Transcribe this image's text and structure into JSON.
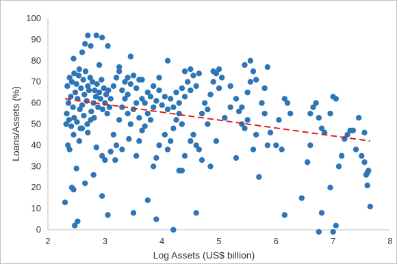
{
  "chart_data": {
    "type": "scatter",
    "title": "",
    "xlabel": "Log Assets (US$ billion)",
    "ylabel": "Loans/Assets (%)",
    "xlim": [
      2,
      8
    ],
    "ylim": [
      0,
      100
    ],
    "x_ticks": [
      2,
      3,
      4,
      5,
      6,
      7,
      8
    ],
    "y_ticks": [
      0,
      10,
      20,
      30,
      40,
      50,
      60,
      70,
      80,
      90,
      100
    ],
    "grid": false,
    "series": [
      {
        "marker_color": "#2e75b6",
        "points": [
          [
            2.3,
            13
          ],
          [
            2.42,
            20
          ],
          [
            2.45,
            19
          ],
          [
            2.47,
            2
          ],
          [
            2.52,
            4
          ],
          [
            2.5,
            29
          ],
          [
            2.65,
            22
          ],
          [
            2.8,
            26
          ],
          [
            2.95,
            16
          ],
          [
            3.05,
            7
          ],
          [
            2.35,
            40
          ],
          [
            2.38,
            38
          ],
          [
            2.45,
            45
          ],
          [
            2.55,
            42
          ],
          [
            2.6,
            48
          ],
          [
            2.7,
            46
          ],
          [
            2.85,
            39
          ],
          [
            2.95,
            35
          ],
          [
            3.0,
            33
          ],
          [
            3.1,
            37
          ],
          [
            2.33,
            55
          ],
          [
            2.36,
            60
          ],
          [
            2.4,
            63
          ],
          [
            2.44,
            58
          ],
          [
            2.48,
            65
          ],
          [
            2.52,
            62
          ],
          [
            2.56,
            57
          ],
          [
            2.6,
            59
          ],
          [
            2.64,
            64
          ],
          [
            2.68,
            61
          ],
          [
            2.72,
            66
          ],
          [
            2.76,
            56
          ],
          [
            2.8,
            60
          ],
          [
            2.84,
            63
          ],
          [
            2.88,
            58
          ],
          [
            2.92,
            62
          ],
          [
            2.96,
            57
          ],
          [
            3.0,
            60
          ],
          [
            3.04,
            55
          ],
          [
            3.08,
            58
          ],
          [
            2.34,
            68
          ],
          [
            2.38,
            72
          ],
          [
            2.42,
            70
          ],
          [
            2.46,
            74
          ],
          [
            2.5,
            69
          ],
          [
            2.54,
            73
          ],
          [
            2.58,
            67
          ],
          [
            2.62,
            71
          ],
          [
            2.66,
            75
          ],
          [
            2.7,
            68
          ],
          [
            2.74,
            72
          ],
          [
            2.78,
            70
          ],
          [
            2.82,
            66
          ],
          [
            2.86,
            69
          ],
          [
            2.9,
            65
          ],
          [
            2.94,
            71
          ],
          [
            2.98,
            67
          ],
          [
            3.02,
            64
          ],
          [
            3.06,
            66
          ],
          [
            3.1,
            62
          ],
          [
            2.32,
            50
          ],
          [
            2.37,
            52
          ],
          [
            2.41,
            49
          ],
          [
            2.46,
            53
          ],
          [
            2.51,
            51
          ],
          [
            2.57,
            48
          ],
          [
            2.63,
            54
          ],
          [
            2.69,
            50
          ],
          [
            2.75,
            52
          ],
          [
            2.81,
            53
          ],
          [
            2.45,
            81
          ],
          [
            2.6,
            84
          ],
          [
            2.65,
            88
          ],
          [
            2.7,
            92
          ],
          [
            2.75,
            87
          ],
          [
            2.85,
            92
          ],
          [
            2.95,
            91
          ],
          [
            3.05,
            87
          ],
          [
            2.55,
            76
          ],
          [
            2.9,
            78
          ],
          [
            3.15,
            45
          ],
          [
            3.2,
            40
          ],
          [
            3.25,
            52
          ],
          [
            3.3,
            58
          ],
          [
            3.35,
            62
          ],
          [
            3.4,
            55
          ],
          [
            3.45,
            50
          ],
          [
            3.5,
            57
          ],
          [
            3.55,
            60
          ],
          [
            3.6,
            53
          ],
          [
            3.15,
            68
          ],
          [
            3.2,
            72
          ],
          [
            3.25,
            75
          ],
          [
            3.3,
            66
          ],
          [
            3.35,
            70
          ],
          [
            3.4,
            64
          ],
          [
            3.45,
            69
          ],
          [
            3.5,
            73
          ],
          [
            3.55,
            67
          ],
          [
            3.6,
            71
          ],
          [
            3.18,
            33
          ],
          [
            3.3,
            38
          ],
          [
            3.42,
            43
          ],
          [
            3.55,
            35
          ],
          [
            3.6,
            42
          ],
          [
            3.65,
            47
          ],
          [
            3.7,
            49
          ],
          [
            3.75,
            55
          ],
          [
            3.8,
            52
          ],
          [
            3.85,
            58
          ],
          [
            3.65,
            62
          ],
          [
            3.7,
            60
          ],
          [
            3.75,
            65
          ],
          [
            3.8,
            63
          ],
          [
            3.85,
            68
          ],
          [
            3.9,
            61
          ],
          [
            3.95,
            66
          ],
          [
            4.0,
            59
          ],
          [
            4.05,
            63
          ],
          [
            4.1,
            57
          ],
          [
            3.5,
            8
          ],
          [
            3.75,
            14
          ],
          [
            3.9,
            5
          ],
          [
            4.2,
            0
          ],
          [
            3.45,
            82
          ],
          [
            3.25,
            77
          ],
          [
            3.4,
            72
          ],
          [
            3.65,
            71
          ],
          [
            3.95,
            72
          ],
          [
            4.1,
            80
          ],
          [
            3.85,
            30
          ],
          [
            3.9,
            34
          ],
          [
            3.95,
            40
          ],
          [
            4.05,
            45
          ],
          [
            4.1,
            38
          ],
          [
            4.15,
            42
          ],
          [
            4.2,
            48
          ],
          [
            4.25,
            52
          ],
          [
            4.3,
            55
          ],
          [
            4.35,
            50
          ],
          [
            4.15,
            62
          ],
          [
            4.2,
            58
          ],
          [
            4.25,
            65
          ],
          [
            4.3,
            60
          ],
          [
            4.35,
            67
          ],
          [
            4.4,
            63
          ],
          [
            4.45,
            70
          ],
          [
            4.5,
            66
          ],
          [
            4.55,
            73
          ],
          [
            4.6,
            68
          ],
          [
            4.3,
            28
          ],
          [
            4.35,
            28
          ],
          [
            4.4,
            35
          ],
          [
            4.5,
            42
          ],
          [
            4.55,
            45
          ],
          [
            4.6,
            40
          ],
          [
            4.65,
            38
          ],
          [
            4.7,
            33
          ],
          [
            4.85,
            30
          ],
          [
            4.95,
            42
          ],
          [
            4.6,
            8
          ],
          [
            4.7,
            55
          ],
          [
            4.75,
            60
          ],
          [
            4.8,
            57
          ],
          [
            4.85,
            64
          ],
          [
            4.9,
            70
          ],
          [
            4.95,
            74
          ],
          [
            5.0,
            67
          ],
          [
            5.05,
            72
          ],
          [
            4.8,
            50
          ],
          [
            4.4,
            75
          ],
          [
            4.5,
            76
          ],
          [
            4.65,
            74
          ],
          [
            4.9,
            75
          ],
          [
            5.0,
            76
          ],
          [
            5.2,
            68
          ],
          [
            5.3,
            34
          ],
          [
            5.1,
            53
          ],
          [
            5.2,
            58
          ],
          [
            5.3,
            62
          ],
          [
            5.35,
            56
          ],
          [
            5.4,
            50
          ],
          [
            5.45,
            48
          ],
          [
            5.5,
            65
          ],
          [
            5.55,
            70
          ],
          [
            5.6,
            75
          ],
          [
            5.65,
            71
          ],
          [
            5.7,
            25
          ],
          [
            5.75,
            60
          ],
          [
            5.8,
            55
          ],
          [
            5.45,
            78
          ],
          [
            5.55,
            80
          ],
          [
            5.85,
            40
          ],
          [
            5.9,
            46
          ],
          [
            6.0,
            40
          ],
          [
            6.05,
            52
          ],
          [
            6.1,
            38
          ],
          [
            6.15,
            62
          ],
          [
            6.2,
            60
          ],
          [
            6.25,
            55
          ],
          [
            5.65,
            45
          ],
          [
            5.6,
            38
          ],
          [
            5.85,
            77
          ],
          [
            5.8,
            67
          ],
          [
            5.5,
            52
          ],
          [
            5.4,
            58
          ],
          [
            6.15,
            7
          ],
          [
            6.45,
            15
          ],
          [
            6.55,
            32
          ],
          [
            6.6,
            40
          ],
          [
            6.6,
            55
          ],
          [
            6.65,
            58
          ],
          [
            6.7,
            60
          ],
          [
            6.75,
            53
          ],
          [
            6.8,
            48
          ],
          [
            6.85,
            46
          ],
          [
            6.95,
            55
          ],
          [
            7.0,
            63
          ],
          [
            7.05,
            62
          ],
          [
            6.75,
            -1
          ],
          [
            6.8,
            8
          ],
          [
            6.95,
            20
          ],
          [
            7.0,
            -1
          ],
          [
            7.05,
            2
          ],
          [
            7.15,
            35
          ],
          [
            7.2,
            43
          ],
          [
            7.25,
            45
          ],
          [
            7.3,
            47
          ],
          [
            7.35,
            47
          ],
          [
            7.4,
            38
          ],
          [
            7.45,
            53
          ],
          [
            7.5,
            35
          ],
          [
            7.55,
            32
          ],
          [
            7.58,
            26
          ],
          [
            7.6,
            27
          ],
          [
            7.6,
            21
          ],
          [
            7.62,
            28
          ],
          [
            7.65,
            11
          ],
          [
            7.55,
            46
          ],
          [
            7.1,
            30
          ]
        ]
      },
      {
        "type": "line",
        "style": "dashed",
        "line_color": "#e31a1c",
        "points": [
          [
            2.3,
            62
          ],
          [
            7.65,
            42
          ]
        ]
      }
    ]
  }
}
